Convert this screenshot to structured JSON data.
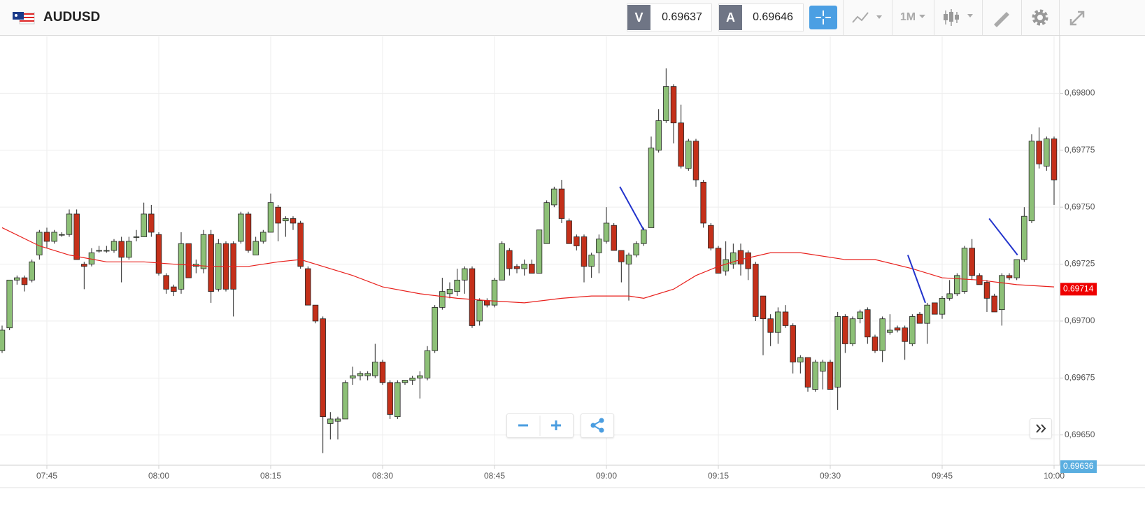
{
  "header": {
    "symbol": "AUDUSD",
    "bid_label": "V",
    "bid": "0.69637",
    "ask_label": "A",
    "ask": "0.69646",
    "timeframe": "1M"
  },
  "chart_data": {
    "type": "candlestick",
    "up_color": "#8dc077",
    "down_color": "#c4301a",
    "grid": true,
    "xlim": [
      458.72,
      600.75
    ],
    "ylim": [
      0.696367,
      0.69825
    ],
    "xticks": [
      {
        "value": 465,
        "label": "07:45"
      },
      {
        "value": 480,
        "label": "08:00"
      },
      {
        "value": 495,
        "label": "08:15"
      },
      {
        "value": 510,
        "label": "08:30"
      },
      {
        "value": 525,
        "label": "08:45"
      },
      {
        "value": 540,
        "label": "09:00"
      },
      {
        "value": 555,
        "label": "09:15"
      },
      {
        "value": 570,
        "label": "09:30"
      },
      {
        "value": 585,
        "label": "09:45"
      },
      {
        "value": 600,
        "label": "10:00"
      }
    ],
    "yticks": [
      {
        "value": 0.698,
        "label": "0,69800"
      },
      {
        "value": 0.69775,
        "label": "0,69775"
      },
      {
        "value": 0.6975,
        "label": "0,69750"
      },
      {
        "value": 0.69725,
        "label": "0,69725"
      },
      {
        "value": 0.697,
        "label": "0,69700"
      },
      {
        "value": 0.69675,
        "label": "0,69675"
      },
      {
        "value": 0.6965,
        "label": "0,69650"
      }
    ],
    "x": [
      459,
      460,
      461,
      462,
      463,
      464,
      465,
      466,
      467,
      468,
      469,
      470,
      471,
      472,
      473,
      474,
      475,
      476,
      477,
      478,
      479,
      480,
      481,
      482,
      483,
      484,
      485,
      486,
      487,
      488,
      489,
      490,
      491,
      492,
      493,
      494,
      495,
      496,
      497,
      498,
      499,
      500,
      501,
      502,
      503,
      504,
      505,
      506,
      507,
      508,
      509,
      510,
      511,
      512,
      513,
      514,
      515,
      516,
      517,
      518,
      519,
      520,
      521,
      522,
      523,
      524,
      525,
      526,
      527,
      528,
      529,
      530,
      531,
      532,
      533,
      534,
      535,
      536,
      537,
      538,
      539,
      540,
      541,
      542,
      543,
      544,
      545,
      546,
      547,
      548,
      549,
      550,
      551,
      552,
      553,
      554,
      555,
      556,
      557,
      558,
      559,
      560,
      561,
      562,
      563,
      564,
      565,
      566,
      567,
      568,
      569,
      570,
      571,
      572,
      573,
      574,
      575,
      576,
      577,
      578,
      579,
      580,
      581,
      582,
      583,
      584,
      585,
      586,
      587,
      588,
      589,
      590,
      591,
      592,
      593,
      594,
      595,
      596,
      597,
      598,
      599,
      600
    ],
    "candles": [
      [
        0.69687,
        0.69698,
        0.69686,
        0.69696
      ],
      [
        0.69697,
        0.69718,
        0.69696,
        0.69718
      ],
      [
        0.69718,
        0.6972,
        0.69716,
        0.69719
      ],
      [
        0.69719,
        0.6972,
        0.69713,
        0.69716
      ],
      [
        0.69718,
        0.69727,
        0.69717,
        0.69726
      ],
      [
        0.69729,
        0.6974,
        0.69727,
        0.69739
      ],
      [
        0.69739,
        0.69741,
        0.69732,
        0.69735
      ],
      [
        0.69735,
        0.6974,
        0.69734,
        0.69739
      ],
      [
        0.69738,
        0.69739,
        0.69737,
        0.69738
      ],
      [
        0.69738,
        0.69749,
        0.69737,
        0.69747
      ],
      [
        0.69747,
        0.69749,
        0.69727,
        0.69727
      ],
      [
        0.69725,
        0.69726,
        0.69714,
        0.69724
      ],
      [
        0.69725,
        0.69732,
        0.69724,
        0.6973
      ],
      [
        0.69731,
        0.69733,
        0.6973,
        0.69731
      ],
      [
        0.69731,
        0.69733,
        0.6973,
        0.69731
      ],
      [
        0.69731,
        0.69736,
        0.6973,
        0.69735
      ],
      [
        0.69735,
        0.69737,
        0.69717,
        0.69728
      ],
      [
        0.69728,
        0.69737,
        0.69727,
        0.69735
      ],
      [
        0.69737,
        0.6974,
        0.69735,
        0.69737
      ],
      [
        0.69737,
        0.69752,
        0.69737,
        0.69747
      ],
      [
        0.69747,
        0.69751,
        0.69737,
        0.69739
      ],
      [
        0.69738,
        0.69739,
        0.6972,
        0.69721
      ],
      [
        0.6972,
        0.69721,
        0.69712,
        0.69714
      ],
      [
        0.69715,
        0.69716,
        0.69711,
        0.69713
      ],
      [
        0.69714,
        0.69739,
        0.69712,
        0.69734
      ],
      [
        0.69734,
        0.69734,
        0.69719,
        0.69719
      ],
      [
        0.69724,
        0.69727,
        0.69721,
        0.69725
      ],
      [
        0.69723,
        0.6974,
        0.69721,
        0.69738
      ],
      [
        0.69738,
        0.6974,
        0.69708,
        0.69713
      ],
      [
        0.69714,
        0.69736,
        0.69713,
        0.69734
      ],
      [
        0.69734,
        0.69735,
        0.69713,
        0.69714
      ],
      [
        0.69734,
        0.69735,
        0.69702,
        0.69714
      ],
      [
        0.69735,
        0.69748,
        0.69734,
        0.69747
      ],
      [
        0.69747,
        0.69748,
        0.6973,
        0.69731
      ],
      [
        0.69729,
        0.69737,
        0.69729,
        0.69735
      ],
      [
        0.69735,
        0.6974,
        0.69734,
        0.69739
      ],
      [
        0.69739,
        0.69756,
        0.69739,
        0.69752
      ],
      [
        0.6975,
        0.69751,
        0.69735,
        0.69743
      ],
      [
        0.69744,
        0.69746,
        0.69737,
        0.69745
      ],
      [
        0.69745,
        0.69746,
        0.6974,
        0.69743
      ],
      [
        0.69743,
        0.69744,
        0.69723,
        0.69724
      ],
      [
        0.69723,
        0.69724,
        0.69707,
        0.69707
      ],
      [
        0.69707,
        0.69707,
        0.69699,
        0.697
      ],
      [
        0.69701,
        0.69702,
        0.69642,
        0.69658
      ],
      [
        0.69655,
        0.6966,
        0.69648,
        0.69657
      ],
      [
        0.69656,
        0.69658,
        0.69648,
        0.69657
      ],
      [
        0.69657,
        0.69674,
        0.69657,
        0.69673
      ],
      [
        0.69675,
        0.6968,
        0.69672,
        0.69676
      ],
      [
        0.69676,
        0.69678,
        0.69674,
        0.69677
      ],
      [
        0.69676,
        0.69678,
        0.69674,
        0.69677
      ],
      [
        0.69676,
        0.6969,
        0.69675,
        0.69682
      ],
      [
        0.69682,
        0.69683,
        0.69672,
        0.69673
      ],
      [
        0.69673,
        0.69674,
        0.69657,
        0.69659
      ],
      [
        0.69658,
        0.69674,
        0.69657,
        0.69673
      ],
      [
        0.69673,
        0.69674,
        0.69672,
        0.69674
      ],
      [
        0.69674,
        0.69676,
        0.69672,
        0.69675
      ],
      [
        0.69675,
        0.69678,
        0.69666,
        0.69676
      ],
      [
        0.69675,
        0.69689,
        0.69674,
        0.69687
      ],
      [
        0.69687,
        0.69707,
        0.69686,
        0.69706
      ],
      [
        0.69706,
        0.69719,
        0.69705,
        0.69713
      ],
      [
        0.69712,
        0.69717,
        0.6971,
        0.69714
      ],
      [
        0.69713,
        0.69723,
        0.69711,
        0.69718
      ],
      [
        0.69718,
        0.69724,
        0.69712,
        0.69723
      ],
      [
        0.69723,
        0.69724,
        0.69697,
        0.69698
      ],
      [
        0.697,
        0.6971,
        0.69698,
        0.69709
      ],
      [
        0.69709,
        0.6971,
        0.69706,
        0.69707
      ],
      [
        0.69707,
        0.69719,
        0.69706,
        0.69718
      ],
      [
        0.69718,
        0.69735,
        0.69718,
        0.69734
      ],
      [
        0.69731,
        0.69732,
        0.6972,
        0.69723
      ],
      [
        0.69724,
        0.69725,
        0.69721,
        0.69723
      ],
      [
        0.69723,
        0.69727,
        0.6972,
        0.69725
      ],
      [
        0.69725,
        0.69727,
        0.69721,
        0.69721
      ],
      [
        0.69721,
        0.6974,
        0.69721,
        0.6974
      ],
      [
        0.69734,
        0.69753,
        0.69734,
        0.69752
      ],
      [
        0.69751,
        0.69759,
        0.6975,
        0.69758
      ],
      [
        0.69758,
        0.69762,
        0.69743,
        0.69745
      ],
      [
        0.69744,
        0.69745,
        0.69734,
        0.69734
      ],
      [
        0.69737,
        0.69738,
        0.69731,
        0.69733
      ],
      [
        0.69737,
        0.69738,
        0.69717,
        0.69724
      ],
      [
        0.69724,
        0.6973,
        0.69719,
        0.69729
      ],
      [
        0.6973,
        0.69738,
        0.69721,
        0.69736
      ],
      [
        0.69735,
        0.6975,
        0.69734,
        0.69743
      ],
      [
        0.69742,
        0.69743,
        0.69731,
        0.69731
      ],
      [
        0.69731,
        0.69731,
        0.69717,
        0.69726
      ],
      [
        0.69725,
        0.6973,
        0.69709,
        0.69729
      ],
      [
        0.69729,
        0.69735,
        0.69728,
        0.69734
      ],
      [
        0.69734,
        0.69741,
        0.69733,
        0.6974
      ],
      [
        0.69741,
        0.69781,
        0.69741,
        0.69776
      ],
      [
        0.69775,
        0.69793,
        0.69774,
        0.69788
      ],
      [
        0.69788,
        0.69811,
        0.69787,
        0.69803
      ],
      [
        0.69803,
        0.69804,
        0.69778,
        0.69787
      ],
      [
        0.69787,
        0.69795,
        0.69767,
        0.69768
      ],
      [
        0.69767,
        0.6978,
        0.69766,
        0.69779
      ],
      [
        0.69779,
        0.6978,
        0.69759,
        0.69762
      ],
      [
        0.69761,
        0.69762,
        0.69741,
        0.69743
      ],
      [
        0.69742,
        0.69743,
        0.69731,
        0.69732
      ],
      [
        0.69732,
        0.69733,
        0.69721,
        0.69721
      ],
      [
        0.69722,
        0.69735,
        0.6972,
        0.69727
      ],
      [
        0.69725,
        0.69734,
        0.69723,
        0.6973
      ],
      [
        0.69731,
        0.69734,
        0.6972,
        0.69725
      ],
      [
        0.6973,
        0.69731,
        0.69718,
        0.69723
      ],
      [
        0.69725,
        0.69726,
        0.697,
        0.69702
      ],
      [
        0.69711,
        0.69711,
        0.69685,
        0.69701
      ],
      [
        0.69701,
        0.69703,
        0.69689,
        0.69695
      ],
      [
        0.69695,
        0.69706,
        0.6969,
        0.69704
      ],
      [
        0.69704,
        0.69707,
        0.69697,
        0.69698
      ],
      [
        0.69698,
        0.69699,
        0.69677,
        0.69682
      ],
      [
        0.69682,
        0.69685,
        0.69677,
        0.69684
      ],
      [
        0.69684,
        0.69684,
        0.69669,
        0.69671
      ],
      [
        0.6967,
        0.69683,
        0.69669,
        0.69682
      ],
      [
        0.69678,
        0.69683,
        0.6967,
        0.69682
      ],
      [
        0.69682,
        0.69683,
        0.6967,
        0.6967
      ],
      [
        0.69671,
        0.69704,
        0.69661,
        0.69702
      ],
      [
        0.69702,
        0.69703,
        0.69686,
        0.6969
      ],
      [
        0.6969,
        0.69702,
        0.69689,
        0.69701
      ],
      [
        0.69701,
        0.69705,
        0.69699,
        0.69704
      ],
      [
        0.69705,
        0.69706,
        0.6969,
        0.69693
      ],
      [
        0.69693,
        0.69694,
        0.69686,
        0.69687
      ],
      [
        0.69687,
        0.69702,
        0.69682,
        0.69701
      ],
      [
        0.69695,
        0.69703,
        0.69694,
        0.69696
      ],
      [
        0.69697,
        0.69698,
        0.69695,
        0.69696
      ],
      [
        0.69697,
        0.69698,
        0.69683,
        0.69691
      ],
      [
        0.6969,
        0.69703,
        0.69689,
        0.69702
      ],
      [
        0.69703,
        0.69704,
        0.69699,
        0.69699
      ],
      [
        0.69699,
        0.69708,
        0.6969,
        0.69707
      ],
      [
        0.69708,
        0.69708,
        0.69703,
        0.69703
      ],
      [
        0.69703,
        0.69711,
        0.69701,
        0.6971
      ],
      [
        0.6971,
        0.69718,
        0.69709,
        0.69712
      ],
      [
        0.69712,
        0.69721,
        0.69711,
        0.6972
      ],
      [
        0.69713,
        0.69733,
        0.69712,
        0.69732
      ],
      [
        0.69732,
        0.69736,
        0.69718,
        0.6972
      ],
      [
        0.6972,
        0.69721,
        0.69716,
        0.69716
      ],
      [
        0.69717,
        0.69718,
        0.69704,
        0.6971
      ],
      [
        0.69711,
        0.69712,
        0.69704,
        0.69704
      ],
      [
        0.69705,
        0.69721,
        0.69698,
        0.6972
      ],
      [
        0.6972,
        0.69721,
        0.69718,
        0.69719
      ],
      [
        0.69719,
        0.69727,
        0.69718,
        0.69727
      ],
      [
        0.69727,
        0.6975,
        0.69726,
        0.69746
      ],
      [
        0.69744,
        0.69782,
        0.69743,
        0.69779
      ],
      [
        0.69779,
        0.69785,
        0.69767,
        0.69769
      ],
      [
        0.69768,
        0.69781,
        0.69766,
        0.6978
      ],
      [
        0.6978,
        0.69781,
        0.69751,
        0.69762
      ]
    ],
    "moving_average": {
      "color": "#e8201c",
      "x": [
        459,
        464,
        468,
        473,
        478,
        482,
        487,
        492,
        496,
        499,
        502,
        506,
        510,
        515,
        520,
        524,
        529,
        534,
        538,
        543,
        545,
        549,
        552,
        555,
        558,
        562,
        566,
        572,
        576,
        581,
        585,
        590,
        595,
        600
      ],
      "values": [
        0.69741,
        0.69733,
        0.69729,
        0.69726,
        0.69726,
        0.69725,
        0.69724,
        0.69724,
        0.69726,
        0.69727,
        0.69724,
        0.6972,
        0.69715,
        0.69712,
        0.6971,
        0.69709,
        0.69708,
        0.6971,
        0.69711,
        0.69711,
        0.6971,
        0.69714,
        0.6972,
        0.69724,
        0.69727,
        0.6973,
        0.6973,
        0.69727,
        0.69727,
        0.69723,
        0.69719,
        0.69718,
        0.69716,
        0.69715
      ]
    },
    "trend_lines": {
      "color": "#2233cc",
      "lines": [
        {
          "x": [
            541.8,
            545.0
          ],
          "y": [
            0.69759,
            0.6974
          ]
        },
        {
          "x": [
            580.4,
            582.75
          ],
          "y": [
            0.69729,
            0.69708
          ]
        },
        {
          "x": [
            591.3,
            595.1
          ],
          "y": [
            0.69745,
            0.69729
          ]
        }
      ]
    },
    "price_markers": [
      {
        "value": 0.69714,
        "label": "0.69714",
        "color": "#ee0000"
      },
      {
        "value": 0.69636,
        "label": "0.69636",
        "color": "#5aaee0"
      }
    ]
  }
}
